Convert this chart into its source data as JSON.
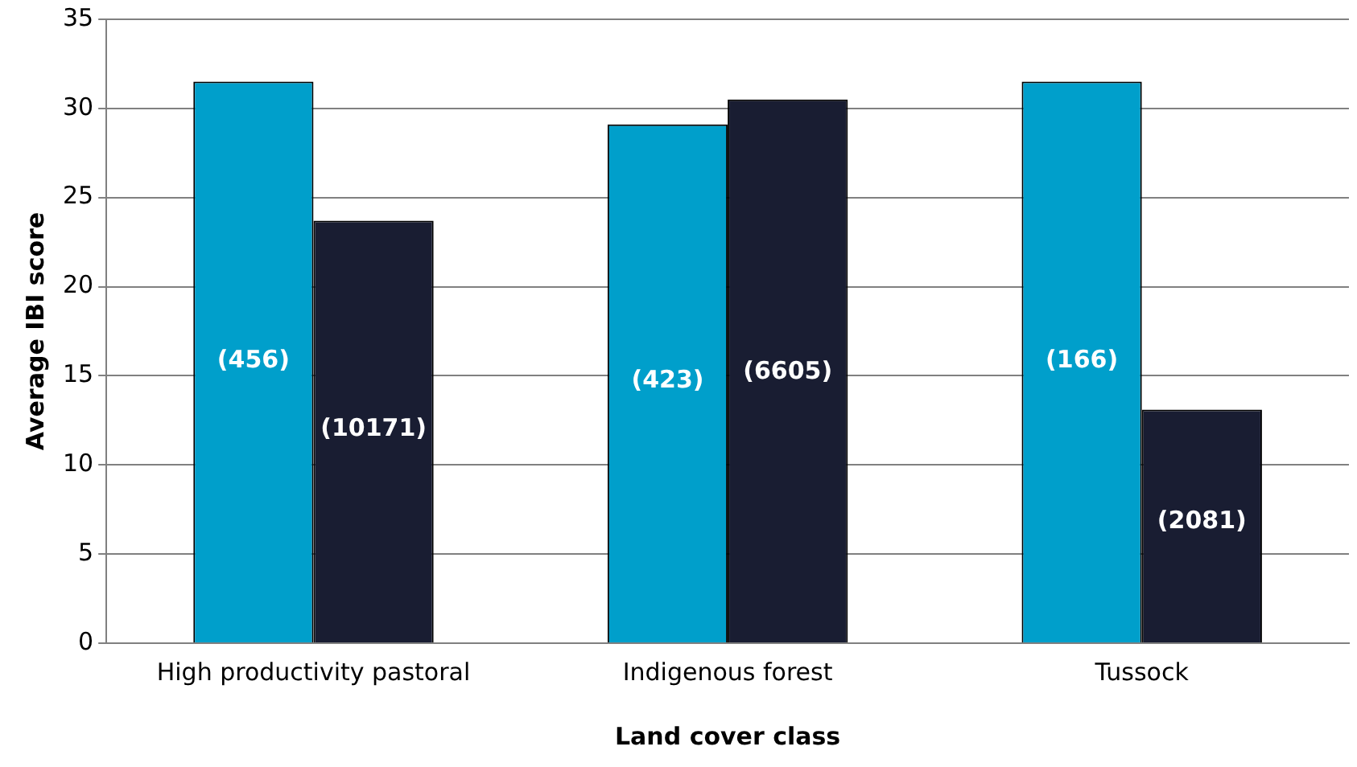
{
  "chart_data": {
    "type": "bar",
    "xlabel": "Land cover class",
    "ylabel": "Average IBI score",
    "categories": [
      "High productivity pastoral",
      "Indigenous forest",
      "Tussock"
    ],
    "series": [
      {
        "color": "#009fcb",
        "values": [
          31.5,
          29.1,
          31.5
        ]
      },
      {
        "color": "#191d32",
        "values": [
          23.7,
          30.5,
          13.1
        ]
      }
    ],
    "annotations": [
      {
        "text": "(456)",
        "x": "High productivity pastoral",
        "y": 15.8
      },
      {
        "text": "(10171)",
        "x": "High productivity pastoral",
        "y": 12.0
      },
      {
        "text": "(423)",
        "x": "Indigenous forest",
        "y": 14.7
      },
      {
        "text": "(6605)",
        "x": "Indigenous forest",
        "y": 15.2
      },
      {
        "text": "(166)",
        "x": "Tussock",
        "y": 15.8
      },
      {
        "text": "(2081)",
        "x": "Tussock",
        "y": 6.8
      }
    ],
    "ylim": [
      0,
      35
    ],
    "yticks": [
      0,
      5,
      10,
      15,
      20,
      25,
      30,
      35
    ],
    "grid": "y",
    "legend": false
  }
}
